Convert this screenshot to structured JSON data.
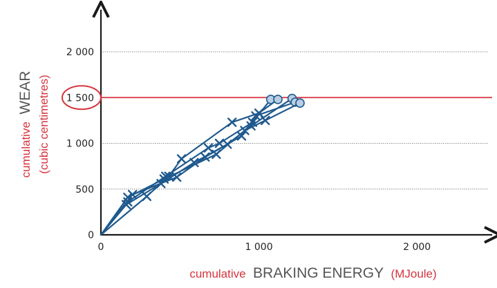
{
  "chart_data": {
    "type": "line",
    "xlabel": {
      "prefix": "cumulative",
      "main": "BRAKING ENERGY",
      "unit": "(MJoule)"
    },
    "ylabel": {
      "prefix": "cumulative",
      "main": "WEAR",
      "unit": "(cubic centimetres)"
    },
    "xlim": [
      0,
      2450
    ],
    "ylim": [
      0,
      2400
    ],
    "xticks": [
      0,
      1000,
      2000
    ],
    "xtick_labels": [
      "0",
      "1 000",
      "2 000"
    ],
    "yticks": [
      0,
      500,
      1000,
      1500,
      2000
    ],
    "ytick_labels": [
      "0",
      "500",
      "1 000",
      "1 500",
      "2 000"
    ],
    "grid": true,
    "reference_line": {
      "y": 1500,
      "highlighted_tick": "1 500"
    },
    "colors": {
      "series": "#1f5a8e",
      "endpoint_fill": "#b9cde4",
      "reference": "#d6333d",
      "axis": "#1a1a1a",
      "label_gray": "#555555",
      "grid": "#8c8c8c"
    },
    "series": [
      {
        "points": [
          [
            0,
            0
          ],
          [
            170,
            360
          ],
          [
            410,
            640
          ],
          [
            680,
            950
          ],
          [
            750,
            1000
          ],
          [
            960,
            1230
          ],
          [
            1075,
            1480
          ]
        ]
      },
      {
        "points": [
          [
            0,
            0
          ],
          [
            290,
            420
          ],
          [
            430,
            640
          ],
          [
            510,
            830
          ],
          [
            830,
            1230
          ],
          [
            1000,
            1330
          ],
          [
            1120,
            1480
          ]
        ]
      },
      {
        "points": [
          [
            0,
            0
          ],
          [
            160,
            330
          ],
          [
            380,
            560
          ],
          [
            590,
            790
          ],
          [
            800,
            990
          ],
          [
            950,
            1190
          ],
          [
            1210,
            1490
          ]
        ]
      },
      {
        "points": [
          [
            0,
            0
          ],
          [
            200,
            440
          ],
          [
            480,
            630
          ],
          [
            660,
            850
          ],
          [
            890,
            1080
          ],
          [
            980,
            1300
          ],
          [
            1230,
            1450
          ]
        ]
      },
      {
        "points": [
          [
            0,
            0
          ],
          [
            170,
            410
          ],
          [
            400,
            610
          ],
          [
            730,
            880
          ],
          [
            910,
            1140
          ],
          [
            1040,
            1250
          ],
          [
            1260,
            1440
          ]
        ]
      }
    ]
  }
}
